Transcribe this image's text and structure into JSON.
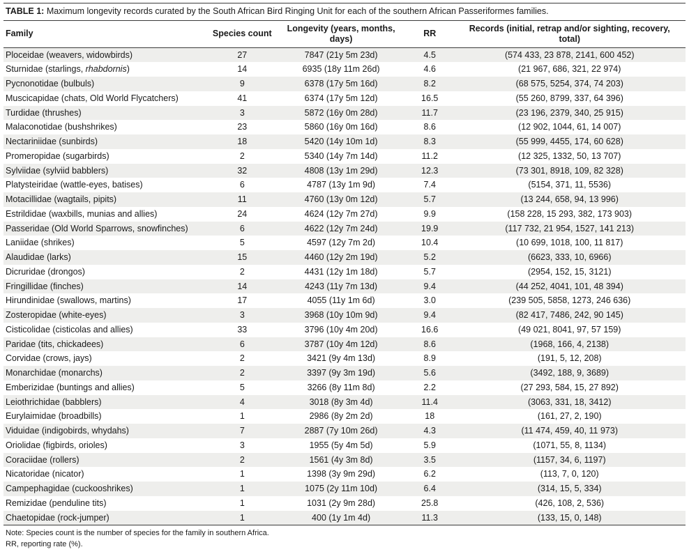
{
  "table": {
    "label": "TABLE 1:",
    "title": "Maximum longevity records curated by the South African Bird Ringing Unit for each of the southern African Passeriformes families.",
    "columns": [
      "Family",
      "Species count",
      "Longevity (years, months, days)",
      "RR",
      "Records (initial, retrap and/or sighting, recovery, total)"
    ],
    "rows": [
      [
        "Ploceidae (weavers, widowbirds)",
        "27",
        "7847 (21y 5m 23d)",
        "4.5",
        "(574 433, 23 878, 2141, 600 452)"
      ],
      [
        "Sturnidae (starlings, *rhabdornis*)",
        "14",
        "6935 (18y 11m 26d)",
        "4.6",
        "(21 967, 686, 321, 22 974)"
      ],
      [
        "Pycnonotidae (bulbuls)",
        "9",
        "6378 (17y 5m 16d)",
        "8.2",
        "(68 575, 5254, 374, 74 203)"
      ],
      [
        "Muscicapidae (chats, Old World Flycatchers)",
        "41",
        "6374 (17y 5m 12d)",
        "16.5",
        "(55 260, 8799, 337, 64 396)"
      ],
      [
        "Turdidae (thrushes)",
        "3",
        "5872 (16y 0m 28d)",
        "11.7",
        "(23 196, 2379, 340, 25 915)"
      ],
      [
        "Malaconotidae (bushshrikes)",
        "23",
        "5860 (16y 0m 16d)",
        "8.6",
        "(12 902, 1044, 61, 14 007)"
      ],
      [
        "Nectariniidae (sunbirds)",
        "18",
        "5420 (14y 10m 1d)",
        "8.3",
        "(55 999, 4455, 174, 60 628)"
      ],
      [
        "Promeropidae (sugarbirds)",
        "2",
        "5340 (14y 7m 14d)",
        "11.2",
        "(12 325, 1332, 50, 13 707)"
      ],
      [
        "Sylviidae (sylviid babblers)",
        "32",
        "4808 (13y 1m 29d)",
        "12.3",
        "(73 301, 8918, 109, 82 328)"
      ],
      [
        "Platysteiridae (wattle-eyes, batises)",
        "6",
        "4787 (13y 1m 9d)",
        "7.4",
        "(5154, 371, 11, 5536)"
      ],
      [
        "Motacillidae (wagtails, pipits)",
        "11",
        "4760 (13y 0m 12d)",
        "5.7",
        "(13 244, 658, 94, 13 996)"
      ],
      [
        "Estrildidae (waxbills, munias and allies)",
        "24",
        "4624 (12y 7m 27d)",
        "9.9",
        "(158 228, 15 293, 382, 173 903)"
      ],
      [
        "Passeridae (Old World Sparrows, snowfinches)",
        "6",
        "4622 (12y 7m 24d)",
        "19.9",
        "(117 732, 21 954, 1527, 141 213)"
      ],
      [
        "Laniidae (shrikes)",
        "5",
        "4597 (12y 7m 2d)",
        "10.4",
        "(10 699, 1018, 100, 11 817)"
      ],
      [
        "Alaudidae (larks)",
        "15",
        "4460 (12y 2m 19d)",
        "5.2",
        "(6623, 333, 10, 6966)"
      ],
      [
        "Dicruridae (drongos)",
        "2",
        "4431 (12y 1m 18d)",
        "5.7",
        "(2954, 152, 15, 3121)"
      ],
      [
        "Fringillidae (finches)",
        "14",
        "4243 (11y 7m 13d)",
        "9.4",
        "(44 252, 4041, 101, 48 394)"
      ],
      [
        "Hirundinidae (swallows, martins)",
        "17",
        "4055 (11y 1m 6d)",
        "3.0",
        "(239 505, 5858, 1273, 246 636)"
      ],
      [
        "Zosteropidae (white-eyes)",
        "3",
        "3968 (10y 10m 9d)",
        "9.4",
        "(82 417, 7486, 242, 90 145)"
      ],
      [
        "Cisticolidae (cisticolas and allies)",
        "33",
        "3796 (10y 4m 20d)",
        "16.6",
        "(49 021, 8041, 97, 57 159)"
      ],
      [
        "Paridae (tits, chickadees)",
        "6",
        "3787 (10y 4m 12d)",
        "8.6",
        "(1968, 166, 4, 2138)"
      ],
      [
        "Corvidae (crows, jays)",
        "2",
        "3421 (9y 4m 13d)",
        "8.9",
        "(191, 5, 12, 208)"
      ],
      [
        "Monarchidae (monarchs)",
        "2",
        "3397 (9y 3m 19d)",
        "5.6",
        "(3492, 188, 9, 3689)"
      ],
      [
        "Emberizidae (buntings and allies)",
        "5",
        "3266 (8y 11m 8d)",
        "2.2",
        "(27 293, 584, 15, 27 892)"
      ],
      [
        "Leiothrichidae (babblers)",
        "4",
        "3018 (8y 3m 4d)",
        "11.4",
        "(3063, 331, 18, 3412)"
      ],
      [
        "Eurylaimidae (broadbills)",
        "1",
        "2986 (8y 2m 2d)",
        "18",
        "(161, 27, 2, 190)"
      ],
      [
        "Viduidae (indigobirds, whydahs)",
        "7",
        "2887 (7y 10m 26d)",
        "4.3",
        "(11 474, 459, 40, 11 973)"
      ],
      [
        "Oriolidae (figbirds, orioles)",
        "3",
        "1955 (5y 4m 5d)",
        "5.9",
        "(1071, 55, 8, 1134)"
      ],
      [
        "Coraciidae (rollers)",
        "2",
        "1561 (4y 3m 8d)",
        "3.5",
        "(1157, 34, 6, 1197)"
      ],
      [
        "Nicatoridae (nicator)",
        "1",
        "1398 (3y 9m 29d)",
        "6.2",
        "(113, 7, 0, 120)"
      ],
      [
        "Campephagidae (cuckooshrikes)",
        "1",
        "1075 (2y 11m 10d)",
        "6.4",
        "(314, 15, 5, 334)"
      ],
      [
        "Remizidae (penduline tits)",
        "1",
        "1031 (2y 9m 28d)",
        "25.8",
        "(426, 108, 2, 536)"
      ],
      [
        "Chaetopidae (rock-jumper)",
        "1",
        "400 (1y 1m 4d)",
        "11.3",
        "(133, 15, 0, 148)"
      ]
    ],
    "notes": [
      "Note: Species count is the number of species for the family in southern Africa.",
      "RR, reporting rate (%)."
    ]
  }
}
